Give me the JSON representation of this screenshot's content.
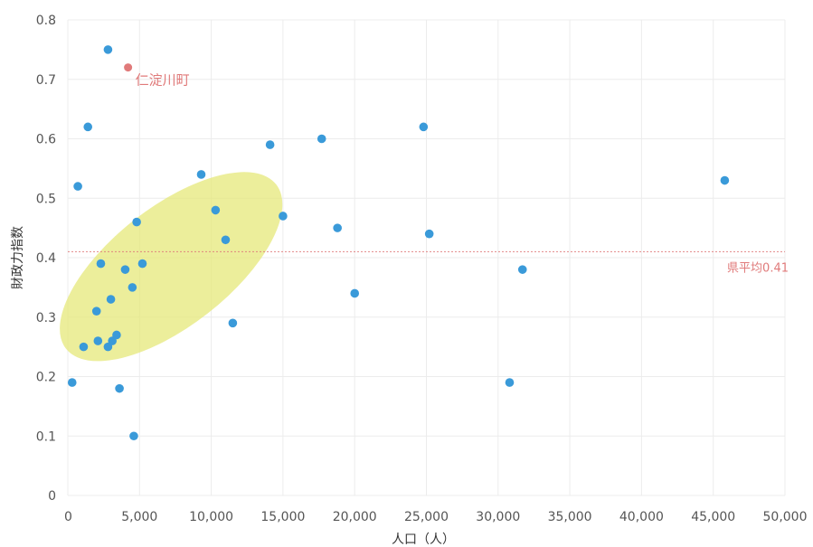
{
  "chart_data": {
    "type": "scatter",
    "title": "",
    "xlabel": "人口（人）",
    "ylabel": "財政力指数",
    "xlim": [
      0,
      50000
    ],
    "ylim": [
      0,
      0.8
    ],
    "x_ticks": [
      0,
      5000,
      10000,
      15000,
      20000,
      25000,
      30000,
      35000,
      40000,
      45000,
      50000
    ],
    "x_tick_labels": [
      "0",
      "5,000",
      "10,000",
      "15,000",
      "20,000",
      "25,000",
      "30,000",
      "35,000",
      "40,000",
      "45,000",
      "50,000"
    ],
    "y_ticks": [
      0,
      0.1,
      0.2,
      0.3,
      0.4,
      0.5,
      0.6,
      0.7,
      0.8
    ],
    "y_tick_labels": [
      "0",
      "0.1",
      "0.2",
      "0.3",
      "0.4",
      "0.5",
      "0.6",
      "0.7",
      "0.8"
    ],
    "grid": true,
    "colors": {
      "point": "#3a9ad9",
      "highlight": "#e07a7a",
      "ellipse": "#e6e87a",
      "average_line": "#e07a7a"
    },
    "points": [
      {
        "x": 300,
        "y": 0.19
      },
      {
        "x": 700,
        "y": 0.52
      },
      {
        "x": 1100,
        "y": 0.25
      },
      {
        "x": 1400,
        "y": 0.62
      },
      {
        "x": 2000,
        "y": 0.31
      },
      {
        "x": 2100,
        "y": 0.26
      },
      {
        "x": 2300,
        "y": 0.39
      },
      {
        "x": 2800,
        "y": 0.75
      },
      {
        "x": 2800,
        "y": 0.25
      },
      {
        "x": 3000,
        "y": 0.33
      },
      {
        "x": 3100,
        "y": 0.26
      },
      {
        "x": 3400,
        "y": 0.27
      },
      {
        "x": 3600,
        "y": 0.18
      },
      {
        "x": 4000,
        "y": 0.38
      },
      {
        "x": 4500,
        "y": 0.35
      },
      {
        "x": 4600,
        "y": 0.1
      },
      {
        "x": 4800,
        "y": 0.46
      },
      {
        "x": 5200,
        "y": 0.39
      },
      {
        "x": 9300,
        "y": 0.54
      },
      {
        "x": 10300,
        "y": 0.48
      },
      {
        "x": 11000,
        "y": 0.43
      },
      {
        "x": 11500,
        "y": 0.29
      },
      {
        "x": 14100,
        "y": 0.59
      },
      {
        "x": 15000,
        "y": 0.47
      },
      {
        "x": 17700,
        "y": 0.6
      },
      {
        "x": 18800,
        "y": 0.45
      },
      {
        "x": 20000,
        "y": 0.34
      },
      {
        "x": 24800,
        "y": 0.62
      },
      {
        "x": 25200,
        "y": 0.44
      },
      {
        "x": 30800,
        "y": 0.19
      },
      {
        "x": 31700,
        "y": 0.38
      },
      {
        "x": 45800,
        "y": 0.53
      }
    ],
    "highlight_point": {
      "x": 4200,
      "y": 0.72,
      "label": "仁淀川町"
    },
    "average": {
      "y": 0.41,
      "label": "県平均0.41"
    },
    "cluster_ellipse": {
      "cx": 7200,
      "cy": 0.385,
      "rx_data": 9300,
      "ry_data": 0.1,
      "angle_deg": -38
    }
  }
}
